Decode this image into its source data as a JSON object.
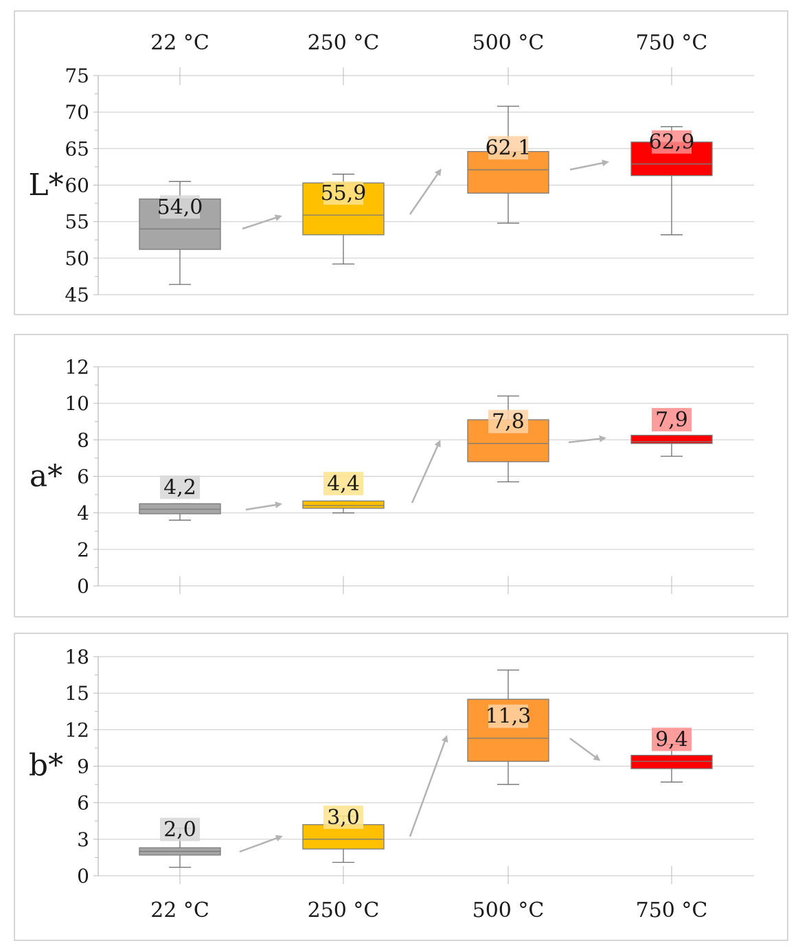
{
  "chart_data": [
    {
      "type": "box",
      "ylabel": "L*",
      "ylim": [
        45,
        75
      ],
      "yticks": [
        45,
        50,
        55,
        60,
        65,
        70,
        75
      ],
      "categories": [
        "22 °C",
        "250 °C",
        "500 °C",
        "750 °C"
      ],
      "categories_shown": "top",
      "colors": [
        "#a6a6a6",
        "#ffc000",
        "#ff9933",
        "#ff0000"
      ],
      "boxes": [
        {
          "min": 46.4,
          "q1": 51.2,
          "median": 54.0,
          "q3": 58.1,
          "max": 60.5,
          "label": "54,0"
        },
        {
          "min": 49.2,
          "q1": 53.2,
          "median": 55.9,
          "q3": 60.3,
          "max": 61.5,
          "label": "55,9"
        },
        {
          "min": 54.8,
          "q1": 58.9,
          "median": 62.1,
          "q3": 64.6,
          "max": 70.8,
          "label": "62,1"
        },
        {
          "min": 53.2,
          "q1": 61.3,
          "median": 62.9,
          "q3": 65.9,
          "max": 68.0,
          "label": "62,9"
        }
      ]
    },
    {
      "type": "box",
      "ylabel": "a*",
      "ylim": [
        0,
        12
      ],
      "yticks": [
        0,
        2,
        4,
        6,
        8,
        10,
        12
      ],
      "categories": [
        "22 °C",
        "250 °C",
        "500 °C",
        "750 °C"
      ],
      "categories_shown": "none",
      "colors": [
        "#a6a6a6",
        "#ffc000",
        "#ff9933",
        "#ff0000"
      ],
      "boxes": [
        {
          "min": 3.6,
          "q1": 3.95,
          "median": 4.2,
          "q3": 4.5,
          "max": 4.5,
          "label": "4,2"
        },
        {
          "min": 4.0,
          "q1": 4.25,
          "median": 4.4,
          "q3": 4.65,
          "max": 4.65,
          "label": "4,4"
        },
        {
          "min": 5.7,
          "q1": 6.8,
          "median": 7.8,
          "q3": 9.1,
          "max": 10.4,
          "label": "7,8"
        },
        {
          "min": 7.1,
          "q1": 7.8,
          "median": 7.9,
          "q3": 8.25,
          "max": 8.25,
          "label": "7,9"
        }
      ]
    },
    {
      "type": "box",
      "ylabel": "b*",
      "ylim": [
        0,
        18
      ],
      "yticks": [
        0,
        3,
        6,
        9,
        12,
        15,
        18
      ],
      "categories": [
        "22 °C",
        "250 °C",
        "500 °C",
        "750 °C"
      ],
      "categories_shown": "bottom",
      "colors": [
        "#a6a6a6",
        "#ffc000",
        "#ff9933",
        "#ff0000"
      ],
      "boxes": [
        {
          "min": 0.7,
          "q1": 1.7,
          "median": 2.0,
          "q3": 2.3,
          "max": 3.9,
          "label": "2,0"
        },
        {
          "min": 1.1,
          "q1": 2.2,
          "median": 3.0,
          "q3": 4.2,
          "max": 4.9,
          "label": "3,0"
        },
        {
          "min": 7.5,
          "q1": 9.4,
          "median": 11.3,
          "q3": 14.5,
          "max": 16.9,
          "label": "11,3"
        },
        {
          "min": 7.7,
          "q1": 8.8,
          "median": 9.4,
          "q3": 9.9,
          "max": 10.8,
          "label": "9,4"
        }
      ]
    }
  ]
}
